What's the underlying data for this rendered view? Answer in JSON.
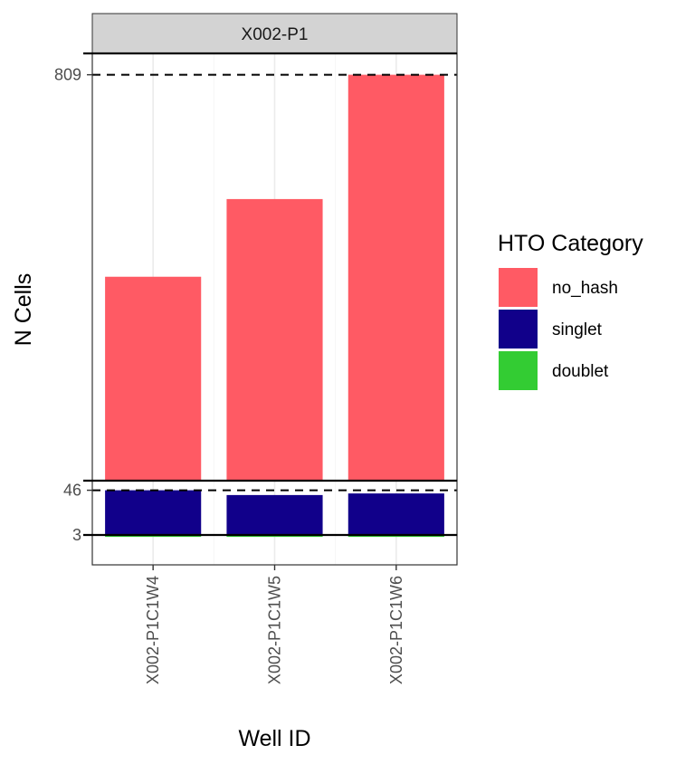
{
  "chart_data": {
    "type": "bar",
    "facet_label": "X002-P1",
    "xlabel": "Well ID",
    "ylabel": "N Cells",
    "categories": [
      "X002-P1C1W4",
      "X002-P1C1W5",
      "X002-P1C1W6"
    ],
    "series": [
      {
        "name": "no_hash",
        "color": "#FF5A64",
        "values": [
          705,
          745,
          809
        ]
      },
      {
        "name": "singlet",
        "color": "#11008A",
        "values": [
          46,
          43,
          44
        ]
      },
      {
        "name": "doublet",
        "color": "#33CC33",
        "values": [
          3,
          3,
          3
        ]
      }
    ],
    "panels": [
      {
        "series": "no_hash",
        "ylim": [
          600,
          820
        ],
        "ref_line": 809,
        "ref_label": "809"
      },
      {
        "series": "singlet",
        "ylim": [
          18,
          52
        ],
        "ref_line": 46,
        "ref_label": "46"
      },
      {
        "series": "doublet",
        "ylim": [
          -44,
          3
        ],
        "ref_line": 3,
        "ref_label": "3"
      }
    ],
    "legend": {
      "title": "HTO Category",
      "position": "right",
      "entries": [
        "no_hash",
        "singlet",
        "doublet"
      ]
    },
    "grid": true
  }
}
